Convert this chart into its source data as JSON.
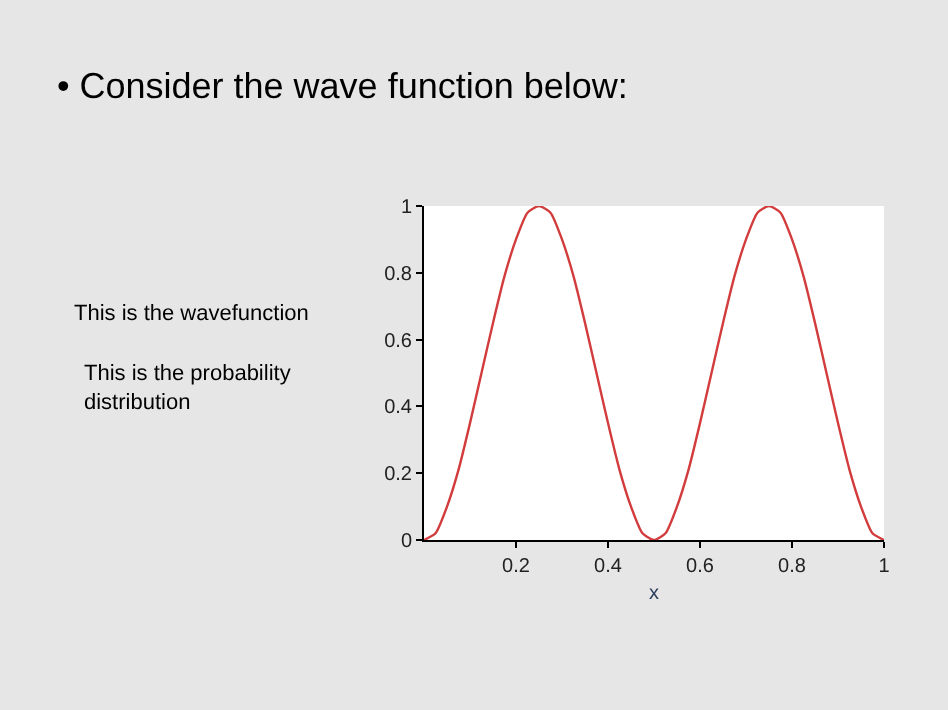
{
  "chart_data": {
    "type": "line",
    "title": "• Consider the wave function below:",
    "xlabel": "x",
    "annotations": [
      "This is the wavefunction",
      "This is the probability distribution"
    ],
    "x": [
      0,
      0.025,
      0.05,
      0.075,
      0.1,
      0.125,
      0.15,
      0.175,
      0.2,
      0.225,
      0.25,
      0.275,
      0.3,
      0.325,
      0.35,
      0.375,
      0.4,
      0.425,
      0.45,
      0.475,
      0.5,
      0.525,
      0.55,
      0.575,
      0.6,
      0.625,
      0.65,
      0.675,
      0.7,
      0.725,
      0.75,
      0.775,
      0.8,
      0.825,
      0.85,
      0.875,
      0.9,
      0.925,
      0.95,
      0.975,
      1
    ],
    "series": [
      {
        "color": "#d23c3c",
        "values": [
          0,
          0.02,
          0.1,
          0.21,
          0.35,
          0.5,
          0.65,
          0.79,
          0.9,
          0.98,
          1,
          0.98,
          0.9,
          0.79,
          0.65,
          0.5,
          0.35,
          0.21,
          0.1,
          0.02,
          0,
          0.02,
          0.1,
          0.21,
          0.35,
          0.5,
          0.65,
          0.79,
          0.9,
          0.98,
          1,
          0.98,
          0.9,
          0.79,
          0.65,
          0.5,
          0.35,
          0.21,
          0.1,
          0.02,
          0
        ]
      }
    ],
    "xlim": [
      0,
      1
    ],
    "ylim": [
      0,
      1
    ],
    "xticks": [
      0.2,
      0.4,
      0.6,
      0.8,
      1
    ],
    "yticks": [
      0,
      0.2,
      0.4,
      0.6,
      0.8,
      1
    ],
    "legend": false,
    "marker": "none",
    "line_style": "solid"
  }
}
